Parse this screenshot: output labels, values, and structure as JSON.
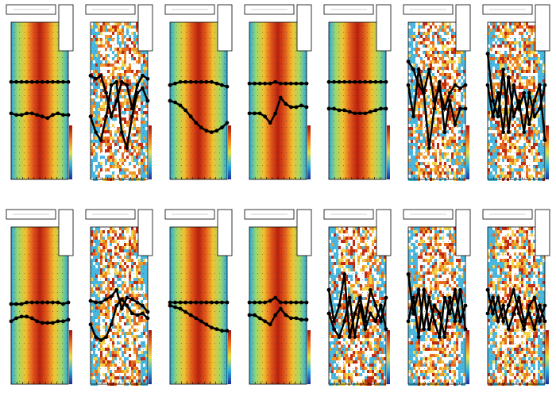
{
  "chart_data": [
    {
      "type": "line",
      "heat": "center",
      "x": [
        0,
        1,
        2,
        3,
        4,
        5,
        6,
        7,
        8,
        9,
        10,
        11
      ],
      "xlim": [
        0,
        11
      ],
      "ylim": [
        0,
        100
      ],
      "series": [
        {
          "color": "#000000",
          "values": [
            62,
            62,
            62,
            62,
            62,
            62,
            62,
            62,
            62,
            62,
            62,
            62
          ]
        },
        {
          "color": "#000000",
          "values": [
            42,
            41,
            41,
            42,
            42,
            41,
            40,
            39,
            41,
            42,
            41,
            41
          ]
        }
      ]
    },
    {
      "type": "line",
      "heat": "noisy",
      "x": [
        0,
        1,
        2,
        3,
        4,
        5,
        6,
        7,
        8,
        9,
        10,
        11
      ],
      "xlim": [
        0,
        11
      ],
      "ylim": [
        0,
        100
      ],
      "series": [
        {
          "color": "#000000",
          "values": [
            66,
            64,
            66,
            55,
            40,
            50,
            62,
            60,
            45,
            60,
            66,
            64
          ]
        },
        {
          "color": "#000000",
          "values": [
            40,
            30,
            25,
            40,
            60,
            62,
            30,
            20,
            40,
            55,
            58,
            50
          ]
        }
      ]
    },
    {
      "type": "line",
      "heat": "center",
      "x": [
        0,
        1,
        2,
        3,
        4,
        5,
        6,
        7,
        8,
        9,
        10,
        11
      ],
      "xlim": [
        0,
        11
      ],
      "ylim": [
        0,
        100
      ],
      "series": [
        {
          "color": "#000000",
          "values": [
            60,
            61,
            62,
            62,
            62,
            62,
            62,
            62,
            62,
            61,
            60,
            59
          ]
        },
        {
          "color": "#000000",
          "values": [
            50,
            49,
            47,
            44,
            40,
            36,
            33,
            31,
            30,
            31,
            33,
            36
          ]
        }
      ]
    },
    {
      "type": "line",
      "heat": "center",
      "x": [
        0,
        1,
        2,
        3,
        4,
        5,
        6,
        7,
        8,
        9,
        10,
        11
      ],
      "xlim": [
        0,
        11
      ],
      "ylim": [
        0,
        100
      ],
      "series": [
        {
          "color": "#000000",
          "values": [
            61,
            61,
            61,
            61,
            61,
            62,
            61,
            61,
            61,
            61,
            61,
            61
          ]
        },
        {
          "color": "#000000",
          "values": [
            42,
            42,
            42,
            40,
            36,
            42,
            52,
            48,
            46,
            46,
            47,
            46
          ]
        }
      ]
    },
    {
      "type": "line",
      "heat": "center",
      "x": [
        0,
        1,
        2,
        3,
        4,
        5,
        6,
        7,
        8,
        9,
        10,
        11
      ],
      "xlim": [
        0,
        11
      ],
      "ylim": [
        0,
        100
      ],
      "series": [
        {
          "color": "#000000",
          "values": [
            62,
            62,
            62,
            62,
            62,
            62,
            62,
            62,
            62,
            62,
            62,
            62
          ]
        },
        {
          "color": "#000000",
          "values": [
            45,
            45,
            44,
            44,
            43,
            42,
            42,
            42,
            43,
            44,
            45,
            45
          ]
        }
      ]
    },
    {
      "type": "line",
      "heat": "noisy",
      "x": [
        0,
        1,
        2,
        3,
        4,
        5,
        6,
        7,
        8,
        9,
        10,
        11
      ],
      "xlim": [
        0,
        11
      ],
      "ylim": [
        0,
        100
      ],
      "series": [
        {
          "color": "#000000",
          "values": [
            75,
            70,
            60,
            55,
            70,
            50,
            58,
            45,
            55,
            60,
            58,
            60
          ]
        },
        {
          "color": "#000000",
          "values": [
            60,
            40,
            70,
            55,
            20,
            45,
            62,
            30,
            50,
            35,
            45,
            45
          ]
        }
      ]
    },
    {
      "type": "line",
      "heat": "noisy",
      "x": [
        0,
        1,
        2,
        3,
        4,
        5,
        6,
        7,
        8,
        9,
        10,
        11
      ],
      "xlim": [
        0,
        11
      ],
      "ylim": [
        0,
        100
      ],
      "series": [
        {
          "color": "#000000",
          "values": [
            80,
            50,
            40,
            70,
            30,
            60,
            45,
            55,
            35,
            50,
            60,
            25
          ]
        },
        {
          "color": "#000000",
          "values": [
            60,
            40,
            55,
            30,
            65,
            40,
            50,
            30,
            55,
            40,
            45,
            60
          ]
        }
      ]
    },
    {
      "type": "line",
      "heat": "center",
      "x": [
        0,
        1,
        2,
        3,
        4,
        5,
        6,
        7,
        8,
        9,
        10,
        11
      ],
      "xlim": [
        0,
        11
      ],
      "ylim": [
        0,
        100
      ],
      "series": [
        {
          "color": "#000000",
          "values": [
            51,
            51,
            51,
            52,
            52,
            52,
            52,
            52,
            52,
            52,
            51,
            52
          ]
        },
        {
          "color": "#000000",
          "values": [
            40,
            42,
            43,
            43,
            42,
            40,
            39,
            39,
            39,
            40,
            40,
            41
          ]
        }
      ]
    },
    {
      "type": "line",
      "heat": "noisy",
      "x": [
        0,
        1,
        2,
        3,
        4,
        5,
        6,
        7,
        8,
        9,
        10,
        11
      ],
      "xlim": [
        0,
        11
      ],
      "ylim": [
        0,
        100
      ],
      "series": [
        {
          "color": "#000000",
          "values": [
            53,
            52,
            52,
            54,
            56,
            60,
            48,
            55,
            54,
            52,
            50,
            46
          ]
        },
        {
          "color": "#000000",
          "values": [
            38,
            30,
            28,
            30,
            38,
            50,
            54,
            50,
            45,
            44,
            45,
            42
          ]
        }
      ]
    },
    {
      "type": "line",
      "heat": "center",
      "x": [
        0,
        1,
        2,
        3,
        4,
        5,
        6,
        7,
        8,
        9,
        10,
        11
      ],
      "xlim": [
        0,
        11
      ],
      "ylim": [
        0,
        100
      ],
      "series": [
        {
          "color": "#000000",
          "values": [
            52,
            52,
            52,
            52,
            52,
            52,
            52,
            52,
            52,
            52,
            52,
            52
          ]
        },
        {
          "color": "#000000",
          "values": [
            50,
            49,
            48,
            46,
            44,
            42,
            40,
            38,
            36,
            35,
            34,
            34
          ]
        }
      ]
    },
    {
      "type": "line",
      "heat": "center",
      "x": [
        0,
        1,
        2,
        3,
        4,
        5,
        6,
        7,
        8,
        9,
        10,
        11
      ],
      "xlim": [
        0,
        11
      ],
      "ylim": [
        0,
        100
      ],
      "series": [
        {
          "color": "#000000",
          "values": [
            52,
            52,
            52,
            52,
            53,
            55,
            52,
            52,
            52,
            52,
            52,
            52
          ]
        },
        {
          "color": "#000000",
          "values": [
            44,
            44,
            42,
            40,
            38,
            44,
            48,
            44,
            42,
            42,
            41,
            41
          ]
        }
      ]
    },
    {
      "type": "line",
      "heat": "noisy",
      "x": [
        0,
        1,
        2,
        3,
        4,
        5,
        6,
        7,
        8,
        9,
        10,
        11
      ],
      "xlim": [
        0,
        11
      ],
      "ylim": [
        0,
        100
      ],
      "series": [
        {
          "color": "#000000",
          "values": [
            60,
            40,
            50,
            70,
            30,
            45,
            55,
            40,
            60,
            50,
            40,
            55
          ]
        },
        {
          "color": "#000000",
          "values": [
            45,
            35,
            30,
            40,
            55,
            30,
            50,
            35,
            45,
            40,
            50,
            35
          ]
        }
      ]
    },
    {
      "type": "line",
      "heat": "noisy",
      "x": [
        0,
        1,
        2,
        3,
        4,
        5,
        6,
        7,
        8,
        9,
        10,
        11
      ],
      "xlim": [
        0,
        11
      ],
      "ylim": [
        0,
        100
      ],
      "series": [
        {
          "color": "#000000",
          "values": [
            70,
            45,
            60,
            35,
            55,
            40,
            30,
            55,
            45,
            60,
            40,
            50
          ]
        },
        {
          "color": "#000000",
          "values": [
            40,
            55,
            30,
            60,
            35,
            50,
            45,
            30,
            55,
            40,
            60,
            35
          ]
        }
      ]
    },
    {
      "type": "line",
      "heat": "noisy",
      "x": [
        0,
        1,
        2,
        3,
        4,
        5,
        6,
        7,
        8,
        9,
        10,
        11
      ],
      "xlim": [
        0,
        11
      ],
      "ylim": [
        0,
        100
      ],
      "series": [
        {
          "color": "#000000",
          "values": [
            60,
            45,
            55,
            40,
            50,
            60,
            45,
            35,
            50,
            55,
            40,
            50
          ]
        },
        {
          "color": "#000000",
          "values": [
            45,
            55,
            40,
            50,
            35,
            45,
            55,
            40,
            45,
            35,
            50,
            40
          ]
        }
      ]
    }
  ]
}
